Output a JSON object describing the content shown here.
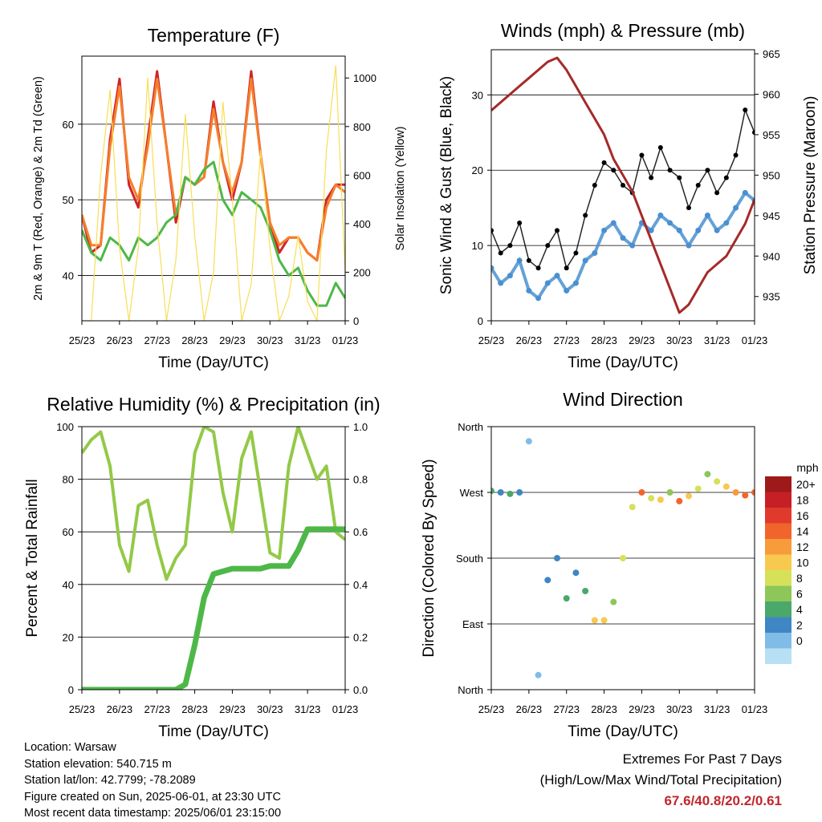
{
  "x_ticks": [
    "25/23",
    "26/23",
    "27/23",
    "28/23",
    "29/23",
    "30/23",
    "31/23",
    "01/23"
  ],
  "chart_data": [
    {
      "type": "line",
      "title": "Temperature (F)",
      "xlabel": "Time (Day/UTC)",
      "ylabel": "2m & 9m T (Red, Orange) & 2m Td (Green)",
      "y2label": "Solar Insolation (Yellow)",
      "ylim": [
        34,
        69
      ],
      "y2lim": [
        0,
        1090
      ],
      "yticks": [
        40,
        50,
        60
      ],
      "y2ticks": [
        0,
        200,
        400,
        600,
        800,
        1000
      ],
      "grid": true,
      "x": [
        0,
        0.25,
        0.5,
        0.75,
        1,
        1.25,
        1.5,
        1.75,
        2,
        2.25,
        2.5,
        2.75,
        3,
        3.25,
        3.5,
        3.75,
        4,
        4.25,
        4.5,
        4.75,
        5,
        5.25,
        5.5,
        5.75,
        6,
        6.25,
        6.5,
        6.75,
        7
      ],
      "series": [
        {
          "name": "2m T",
          "color": "#d0232a",
          "values": [
            48,
            43,
            44,
            58,
            66,
            52,
            49,
            58,
            67,
            57,
            47,
            53,
            52,
            53,
            63,
            55,
            50,
            55,
            67,
            56,
            47,
            43,
            45,
            45,
            43,
            42,
            50,
            52,
            52
          ]
        },
        {
          "name": "9m T",
          "color": "#f57f2a",
          "values": [
            48,
            44,
            44,
            57,
            65,
            53,
            50,
            57,
            66,
            57,
            48,
            53,
            52,
            53,
            62,
            55,
            51,
            55,
            66,
            56,
            47,
            44,
            45,
            45,
            43,
            42,
            49,
            52,
            51
          ]
        },
        {
          "name": "2m Td",
          "color": "#4db848",
          "values": [
            46,
            43,
            42,
            45,
            44,
            42,
            45,
            44,
            45,
            47,
            48,
            53,
            52,
            54,
            55,
            50,
            48,
            51,
            50,
            49,
            46,
            42,
            40,
            41,
            38,
            36,
            36,
            39,
            37
          ]
        },
        {
          "name": "Solar Insolation",
          "color": "#f8de55",
          "axis": "right",
          "values": [
            0,
            0,
            600,
            950,
            300,
            0,
            300,
            1000,
            400,
            0,
            250,
            850,
            350,
            0,
            200,
            900,
            500,
            0,
            150,
            700,
            300,
            0,
            100,
            350,
            80,
            0,
            700,
            1050,
            200
          ]
        }
      ]
    },
    {
      "type": "scatter",
      "title": "Winds (mph) & Pressure (mb)",
      "xlabel": "Time (Day/UTC)",
      "ylabel": "Sonic Wind & Gust (Blue, Black)",
      "y2label": "Station Pressure (Maroon)",
      "ylim": [
        0,
        36
      ],
      "y2lim": [
        932,
        965.5
      ],
      "yticks": [
        0,
        10,
        20,
        30
      ],
      "y2ticks": [
        935,
        940,
        945,
        950,
        955,
        960,
        965
      ],
      "grid": true,
      "x": [
        0,
        0.25,
        0.5,
        0.75,
        1,
        1.25,
        1.5,
        1.75,
        2,
        2.25,
        2.5,
        2.75,
        3,
        3.25,
        3.5,
        3.75,
        4,
        4.25,
        4.5,
        4.75,
        5,
        5.25,
        5.5,
        5.75,
        6,
        6.25,
        6.5,
        6.75,
        7
      ],
      "series": [
        {
          "name": "Sonic Wind",
          "color": "#4a90d0",
          "values": [
            7,
            5,
            6,
            8,
            4,
            3,
            5,
            6,
            4,
            5,
            8,
            9,
            12,
            13,
            11,
            10,
            13,
            12,
            14,
            13,
            12,
            10,
            12,
            14,
            12,
            13,
            15,
            17,
            16
          ]
        },
        {
          "name": "Gust",
          "color": "#000000",
          "values": [
            12,
            9,
            10,
            13,
            8,
            7,
            10,
            12,
            7,
            9,
            14,
            18,
            21,
            20,
            18,
            17,
            22,
            19,
            23,
            20,
            19,
            15,
            18,
            20,
            17,
            19,
            22,
            28,
            25
          ]
        },
        {
          "name": "Station Pressure",
          "color": "#a52a2a",
          "axis": "right",
          "values": [
            958,
            959,
            960,
            961,
            962,
            963,
            964,
            964.5,
            963,
            961,
            959,
            957,
            955,
            952,
            950,
            948,
            945,
            942,
            939,
            936,
            933,
            934,
            936,
            938,
            939,
            940,
            942,
            944,
            947
          ]
        }
      ]
    },
    {
      "type": "line",
      "title": "Relative Humidity (%) & Precipitation (in)",
      "xlabel": "Time (Day/UTC)",
      "ylabel": "Percent & Total Rainfall",
      "ylim": [
        0,
        100
      ],
      "y2lim": [
        0,
        1.0
      ],
      "yticks": [
        0,
        20,
        40,
        60,
        80,
        100
      ],
      "y2ticks": [
        "0.0",
        "0.2",
        "0.4",
        "0.6",
        "0.8",
        "1.0"
      ],
      "grid": true,
      "x": [
        0,
        0.25,
        0.5,
        0.75,
        1,
        1.25,
        1.5,
        1.75,
        2,
        2.25,
        2.5,
        2.75,
        3,
        3.25,
        3.5,
        3.75,
        4,
        4.25,
        4.5,
        4.75,
        5,
        5.25,
        5.5,
        5.75,
        6,
        6.25,
        6.5,
        6.75,
        7
      ],
      "series": [
        {
          "name": "Relative Humidity",
          "color": "#93c947",
          "values": [
            90,
            95,
            98,
            85,
            55,
            45,
            70,
            72,
            55,
            42,
            50,
            55,
            90,
            100,
            98,
            75,
            60,
            88,
            98,
            75,
            52,
            50,
            85,
            100,
            90,
            80,
            85,
            60,
            57
          ]
        },
        {
          "name": "Total Rainfall",
          "color": "#4db848",
          "axis": "right",
          "values": [
            0,
            0,
            0,
            0,
            0,
            0,
            0,
            0,
            0,
            0,
            0,
            0.02,
            0.17,
            0.35,
            0.44,
            0.45,
            0.46,
            0.46,
            0.46,
            0.46,
            0.47,
            0.47,
            0.47,
            0.53,
            0.61,
            0.61,
            0.61,
            0.61,
            0.61
          ]
        }
      ]
    },
    {
      "type": "scatter",
      "title": "Wind Direction",
      "xlabel": "Time (Day/UTC)",
      "ylabel": "Direction (Colored By Speed)",
      "yticks": [
        "North",
        "East",
        "South",
        "West",
        "North"
      ],
      "ylim": [
        0,
        360
      ],
      "grid": true,
      "x": [
        0,
        0.25,
        0.5,
        0.75,
        1,
        1.25,
        1.5,
        1.75,
        2,
        2.25,
        2.5,
        2.75,
        3,
        3.25,
        3.5,
        3.75,
        4,
        4.25,
        4.5,
        4.75,
        5,
        5.25,
        5.5,
        5.75,
        6,
        6.25,
        6.5,
        6.75,
        7
      ],
      "series": [
        {
          "name": "Direction",
          "values": [
            272,
            270,
            268,
            270,
            340,
            20,
            150,
            180,
            125,
            160,
            135,
            95,
            95,
            120,
            180,
            250,
            270,
            262,
            260,
            270,
            258,
            265,
            275,
            295,
            285,
            278,
            270,
            266,
            270
          ]
        },
        {
          "name": "Speed",
          "values": [
            6,
            5,
            6,
            5,
            3,
            2,
            4,
            5,
            6,
            4,
            7,
            13,
            13,
            9,
            10,
            10,
            16,
            10,
            12,
            9,
            16,
            12,
            10,
            9,
            11,
            12,
            15,
            17,
            16
          ]
        }
      ],
      "colorbar": {
        "label": "mph",
        "labels": [
          "20+",
          "18",
          "16",
          "14",
          "12",
          "10",
          "8",
          "6",
          "4",
          "2",
          "0"
        ],
        "colors": [
          "#9e1a1a",
          "#c71f26",
          "#e03a2d",
          "#f1652c",
          "#f79b3b",
          "#f8c94f",
          "#d6e15a",
          "#8ec65a",
          "#4aa86a",
          "#3f86c4",
          "#7fbde8",
          "#b8e0f4"
        ]
      }
    }
  ],
  "info": {
    "location": "Location: Warsaw",
    "elevation": "Station elevation: 540.715 m",
    "latlon": "Station lat/lon: 42.7799; -78.2089",
    "created": "Figure created on Sun, 2025-06-01, at 23:30 UTC",
    "recent": "Most recent data timestamp: 2025/06/01 23:15:00"
  },
  "extremes": {
    "title": "Extremes For Past 7 Days",
    "subtitle": "(High/Low/Max Wind/Total Precipitation)",
    "values": "67.6/40.8/20.2/0.61"
  }
}
